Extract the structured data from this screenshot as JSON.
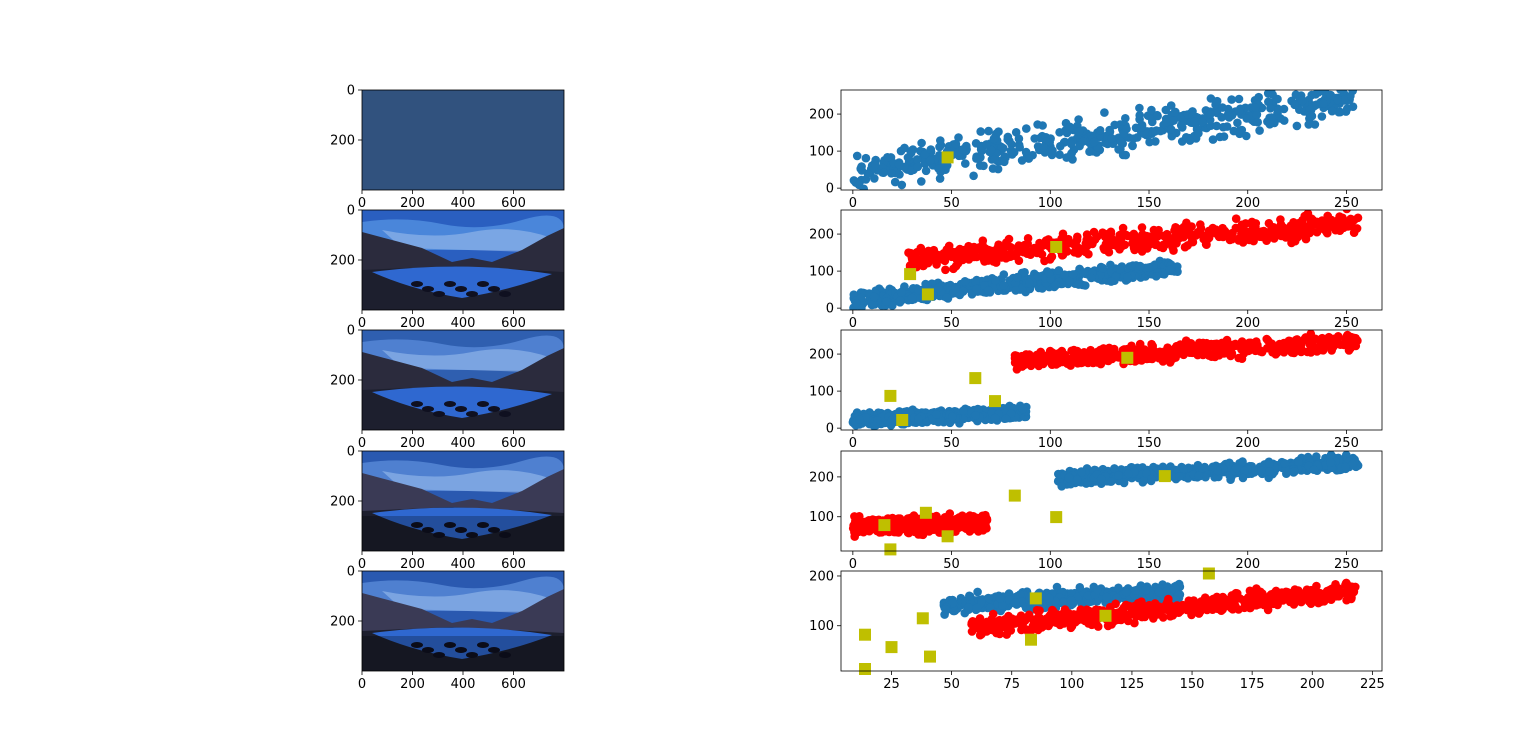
{
  "colors": {
    "blue": "#1f77b4",
    "red": "#ff0000",
    "marker": "#bfbf00",
    "scene_sky": "#2f5fb0",
    "scene_dark": "#1d1f2e",
    "scene_single": "#31527e"
  },
  "chart_data": [
    {
      "type": "image",
      "panel": 1,
      "clusters": 1,
      "xticks": [
        0,
        200,
        400,
        600
      ],
      "yticks": [
        0,
        200
      ],
      "xlim": [
        0,
        800
      ],
      "ylim": [
        400,
        0
      ]
    },
    {
      "type": "scatter",
      "panel": 1,
      "xticks": [
        0,
        50,
        100,
        150,
        200,
        250
      ],
      "yticks": [
        0,
        100,
        200
      ],
      "xlim": [
        -6,
        268
      ],
      "ylim": [
        -5,
        265
      ],
      "series": [
        {
          "color": "blue",
          "x_range": [
            0,
            256
          ],
          "y_center_at_x0": 45,
          "y_center_at_xmax": 245,
          "spread": 55
        }
      ],
      "centers": [
        [
          48,
          83
        ]
      ]
    },
    {
      "type": "image",
      "panel": 2,
      "clusters": 2,
      "xticks": [
        0,
        200,
        400,
        600
      ],
      "yticks": [
        0,
        200
      ],
      "xlim": [
        0,
        800
      ],
      "ylim": [
        400,
        0
      ]
    },
    {
      "type": "scatter",
      "panel": 2,
      "xticks": [
        0,
        50,
        100,
        150,
        200,
        250
      ],
      "yticks": [
        0,
        100,
        200
      ],
      "xlim": [
        -6,
        268
      ],
      "ylim": [
        -5,
        265
      ],
      "series": [
        {
          "color": "blue",
          "x_range": [
            0,
            165
          ],
          "y_center_at_x0": 20,
          "y_center_at_xmax": 110,
          "spread": 25
        },
        {
          "color": "red",
          "x_range": [
            28,
            256
          ],
          "y_center_at_x0": 130,
          "y_center_at_xmax": 232,
          "spread": 35
        }
      ],
      "centers": [
        [
          29,
          92
        ],
        [
          38,
          37
        ],
        [
          103,
          165
        ]
      ]
    },
    {
      "type": "image",
      "panel": 3,
      "clusters": 2,
      "xticks": [
        0,
        200,
        400,
        600
      ],
      "yticks": [
        0,
        200
      ],
      "xlim": [
        0,
        800
      ],
      "ylim": [
        400,
        0
      ]
    },
    {
      "type": "scatter",
      "panel": 3,
      "xticks": [
        0,
        50,
        100,
        150,
        200,
        250
      ],
      "yticks": [
        0,
        100,
        200
      ],
      "xlim": [
        -6,
        268
      ],
      "ylim": [
        -5,
        265
      ],
      "series": [
        {
          "color": "blue",
          "x_range": [
            0,
            88
          ],
          "y_center_at_x0": 22,
          "y_center_at_xmax": 42,
          "spread": 18
        },
        {
          "color": "red",
          "x_range": [
            82,
            256
          ],
          "y_center_at_x0": 180,
          "y_center_at_xmax": 235,
          "spread": 25
        }
      ],
      "centers": [
        [
          19,
          87
        ],
        [
          25,
          22
        ],
        [
          62,
          135
        ],
        [
          72,
          73
        ],
        [
          139,
          190
        ]
      ]
    },
    {
      "type": "image",
      "panel": 4,
      "clusters": 2,
      "xticks": [
        0,
        200,
        400,
        600
      ],
      "yticks": [
        0,
        200
      ],
      "xlim": [
        0,
        800
      ],
      "ylim": [
        400,
        0
      ]
    },
    {
      "type": "scatter",
      "panel": 4,
      "xticks": [
        0,
        50,
        100,
        150,
        200,
        250
      ],
      "yticks": [
        100,
        200
      ],
      "xlim": [
        -6,
        268
      ],
      "ylim": [
        14,
        265
      ],
      "series": [
        {
          "color": "red",
          "x_range": [
            0,
            68
          ],
          "y_center_at_x0": 75,
          "y_center_at_xmax": 85,
          "spread": 22
        },
        {
          "color": "blue",
          "x_range": [
            104,
            256
          ],
          "y_center_at_x0": 195,
          "y_center_at_xmax": 235,
          "spread": 20
        }
      ],
      "centers": [
        [
          16,
          79
        ],
        [
          19,
          18
        ],
        [
          37,
          110
        ],
        [
          48,
          51
        ],
        [
          82,
          153
        ],
        [
          103,
          99
        ],
        [
          158,
          202
        ]
      ]
    },
    {
      "type": "image",
      "panel": 5,
      "clusters": 2,
      "xticks": [
        0,
        200,
        400,
        600
      ],
      "yticks": [
        0,
        200
      ],
      "xlim": [
        0,
        800
      ],
      "ylim": [
        400,
        0
      ]
    },
    {
      "type": "scatter",
      "panel": 5,
      "xticks": [
        25,
        50,
        75,
        100,
        125,
        150,
        175,
        200,
        225
      ],
      "yticks": [
        100,
        200
      ],
      "xlim": [
        4,
        229
      ],
      "ylim": [
        9,
        210
      ],
      "series": [
        {
          "color": "blue",
          "x_range": [
            46,
            145
          ],
          "y_center_at_x0": 140,
          "y_center_at_xmax": 170,
          "spread": 18
        },
        {
          "color": "red",
          "x_range": [
            58,
            218
          ],
          "y_center_at_x0": 95,
          "y_center_at_xmax": 170,
          "spread": 20
        }
      ],
      "centers": [
        [
          14,
          82
        ],
        [
          14,
          13
        ],
        [
          25,
          57
        ],
        [
          38,
          115
        ],
        [
          41,
          38
        ],
        [
          83,
          72
        ],
        [
          85,
          155
        ],
        [
          114,
          120
        ],
        [
          157,
          205
        ]
      ]
    }
  ]
}
